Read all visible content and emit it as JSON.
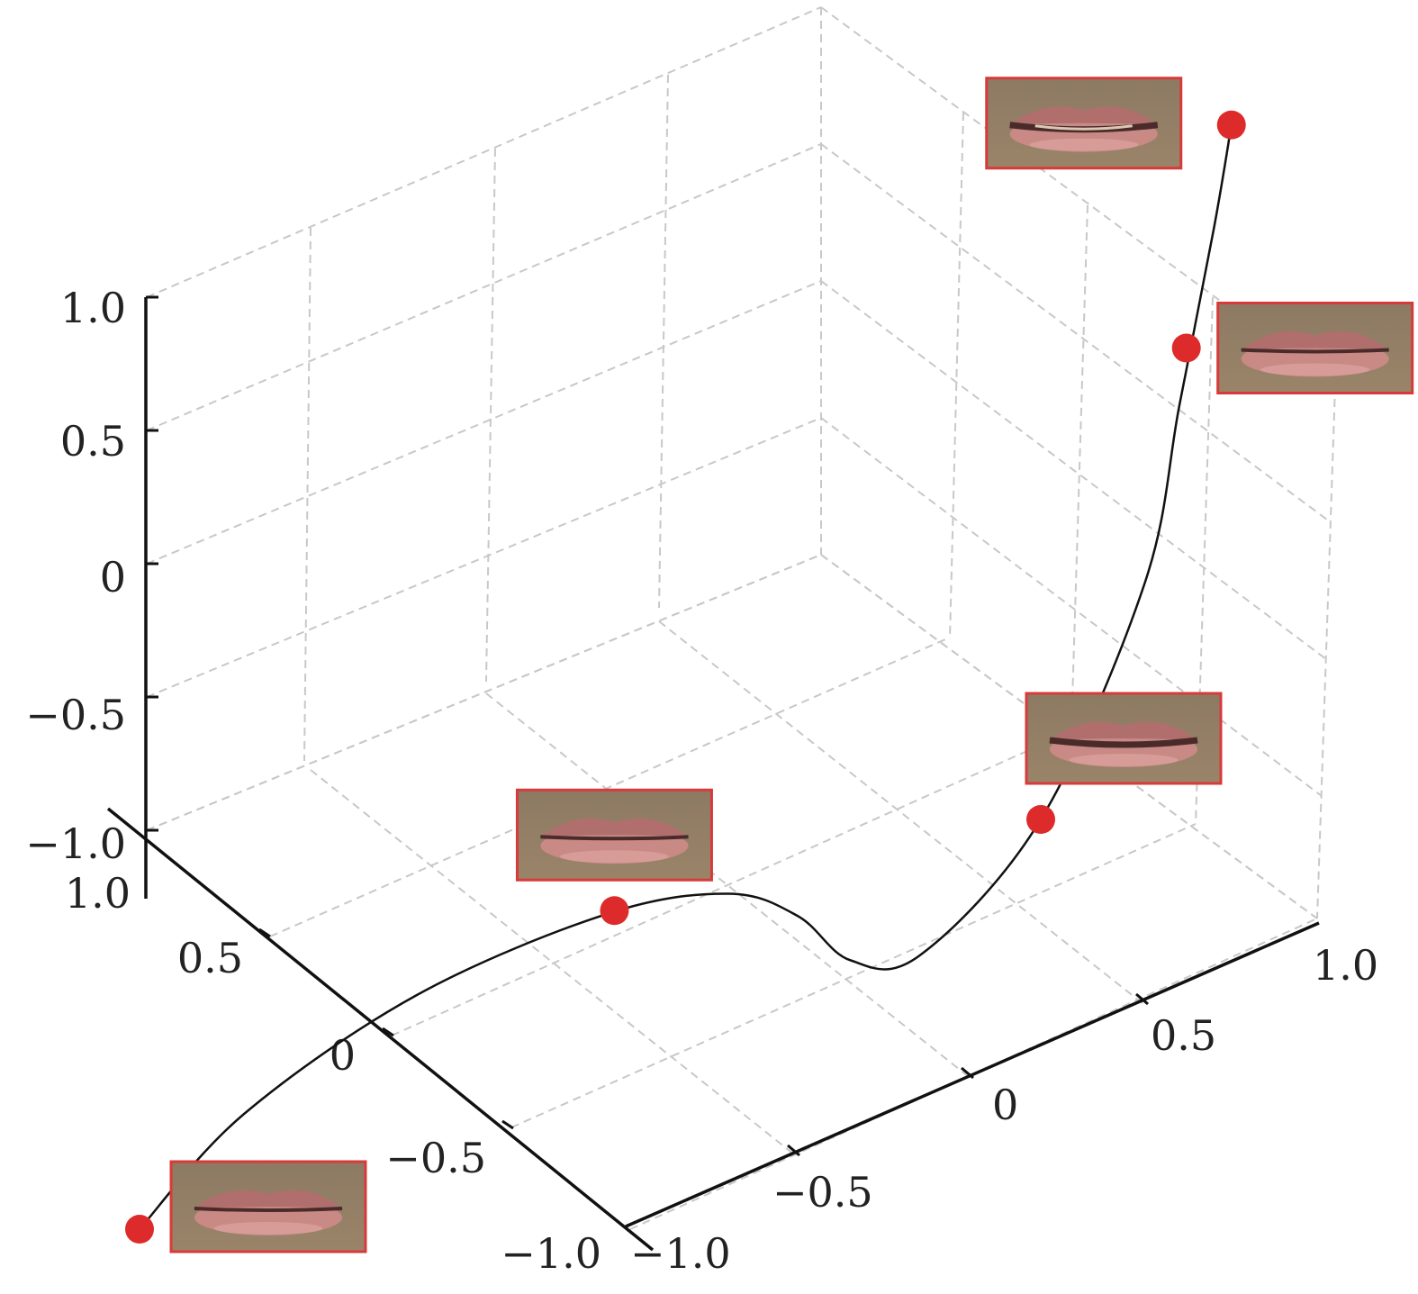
{
  "chart_data": {
    "type": "line",
    "projection": "3d",
    "grid": true,
    "grid_style": "dashed",
    "xlim": [
      -1.0,
      1.0
    ],
    "ylim": [
      -1.0,
      1.0
    ],
    "zlim": [
      -1.0,
      1.0
    ],
    "x_ticks": [
      "−1.0",
      "−0.5",
      "0",
      "0.5",
      "1.0"
    ],
    "y_ticks": [
      "−1.0",
      "−0.5",
      "0",
      "0.5",
      "1.0"
    ],
    "z_ticks": [
      "−1.0",
      "−0.5",
      "0",
      "0.5",
      "1.0"
    ],
    "curve": {
      "x": [
        1.0,
        0.85,
        0.6,
        0.35,
        0.2,
        0.15,
        0.1,
        0.0,
        -0.25,
        -0.45,
        -0.5,
        -0.55,
        -0.6
      ],
      "y": [
        -1.0,
        -0.85,
        -0.6,
        -0.3,
        -0.1,
        0.05,
        0.15,
        0.25,
        0.35,
        0.45,
        0.5,
        0.55,
        0.55
      ],
      "z": [
        -1.0,
        -0.75,
        -0.6,
        -0.62,
        -0.75,
        -0.95,
        -1.2,
        -1.3,
        -1.0,
        -0.3,
        0.3,
        0.9,
        1.25
      ]
    },
    "curve_color": "#111111",
    "markers": {
      "x": [
        1.0,
        0.33,
        -0.25,
        -0.52,
        -0.6
      ],
      "y": [
        -1.0,
        -0.3,
        0.35,
        0.5,
        0.55
      ],
      "z": [
        -1.0,
        -0.62,
        -1.0,
        0.5,
        1.25
      ]
    },
    "marker_color": "#dd2b2b",
    "annotation_images": [
      {
        "name": "mouth-thumbnail-1",
        "subject": "closed lips",
        "marker_index": 0
      },
      {
        "name": "mouth-thumbnail-2",
        "subject": "closed lips",
        "marker_index": 1
      },
      {
        "name": "mouth-thumbnail-3",
        "subject": "slightly open lips",
        "marker_index": 2
      },
      {
        "name": "mouth-thumbnail-4",
        "subject": "closed lips",
        "marker_index": 3
      },
      {
        "name": "mouth-thumbnail-5",
        "subject": "open lips showing teeth",
        "marker_index": 4
      }
    ],
    "annotation_border_color": "#d83a3a",
    "title": "",
    "xlabel": "",
    "ylabel": "",
    "zlabel": ""
  }
}
